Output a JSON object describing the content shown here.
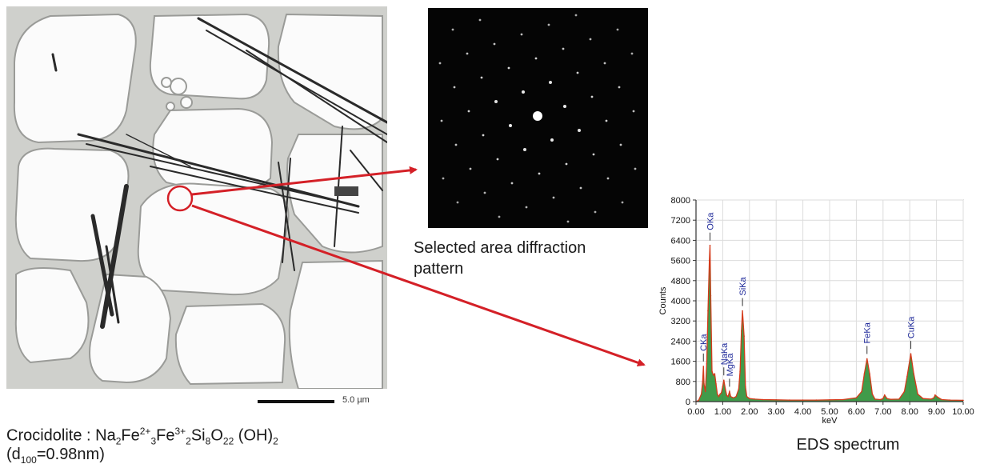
{
  "micrograph": {
    "scale_bar_label": "5.0 µm"
  },
  "caption": {
    "formula_parts": [
      "Crocidolite : Na",
      "2",
      "Fe",
      "2+",
      "3",
      "Fe",
      "3+",
      "2",
      "Si",
      "8",
      "O",
      "22",
      " (OH)",
      "2"
    ],
    "spacing_parts": [
      "(d",
      "100",
      "=0.98nm)"
    ]
  },
  "diffraction": {
    "caption": "Selected area diffraction pattern"
  },
  "colors": {
    "arrow": "#d42027",
    "circle": "#d42027",
    "peak_fill": "#1f8a2a",
    "spectrum_line": "#d43a1a",
    "peak_label": "#1f2a9a"
  },
  "chart_data": {
    "type": "area",
    "title": "",
    "caption": "EDS spectrum",
    "xlabel": "keV",
    "ylabel": "Counts",
    "xlim": [
      0,
      10
    ],
    "ylim": [
      0,
      8000
    ],
    "x_ticks": [
      "0.00",
      "1.00",
      "2.00",
      "3.00",
      "4.00",
      "5.00",
      "6.00",
      "7.00",
      "8.00",
      "9.00",
      "10.00"
    ],
    "y_ticks": [
      "0",
      "800",
      "1600",
      "2400",
      "3200",
      "4000",
      "4800",
      "5600",
      "6400",
      "7200",
      "8000"
    ],
    "grid": true,
    "series": [
      {
        "x": [
          0.0,
          0.1,
          0.2,
          0.25,
          0.277,
          0.3,
          0.35,
          0.4,
          0.45,
          0.5,
          0.525,
          0.55,
          0.6,
          0.65,
          0.7,
          0.75,
          0.8,
          0.85,
          0.9,
          0.95,
          1.0,
          1.041,
          1.1,
          1.15,
          1.2,
          1.254,
          1.3,
          1.4,
          1.5,
          1.6,
          1.65,
          1.7,
          1.74,
          1.8,
          1.85,
          1.9,
          2.0,
          2.2,
          2.5,
          3.0,
          3.5,
          4.0,
          4.5,
          5.0,
          5.5,
          6.0,
          6.2,
          6.3,
          6.4,
          6.5,
          6.6,
          6.7,
          6.9,
          7.0,
          7.06,
          7.15,
          7.3,
          7.6,
          7.8,
          7.9,
          8.04,
          8.15,
          8.3,
          8.5,
          8.8,
          8.9,
          8.95,
          9.05,
          9.2,
          9.5,
          10.0
        ],
        "y": [
          0,
          50,
          300,
          800,
          1400,
          700,
          400,
          1500,
          3600,
          5600,
          6200,
          4200,
          1200,
          1050,
          1100,
          700,
          300,
          200,
          300,
          350,
          600,
          850,
          500,
          250,
          200,
          400,
          200,
          150,
          200,
          500,
          1200,
          2800,
          3600,
          2600,
          600,
          200,
          120,
          100,
          80,
          70,
          60,
          60,
          60,
          70,
          80,
          150,
          400,
          1100,
          1700,
          1100,
          300,
          100,
          80,
          120,
          260,
          120,
          90,
          100,
          400,
          1000,
          1900,
          1100,
          300,
          120,
          100,
          150,
          260,
          170,
          80,
          60,
          50
        ]
      }
    ],
    "annotations": [
      {
        "label": "CKa",
        "x": 0.277
      },
      {
        "label": "OKa",
        "x": 0.525
      },
      {
        "label": "NaKa",
        "x": 1.041
      },
      {
        "label": "MgKa",
        "x": 1.254
      },
      {
        "label": "SiKa",
        "x": 1.74
      },
      {
        "label": "FeKa",
        "x": 6.4
      },
      {
        "label": "CuKa",
        "x": 8.04
      }
    ]
  }
}
